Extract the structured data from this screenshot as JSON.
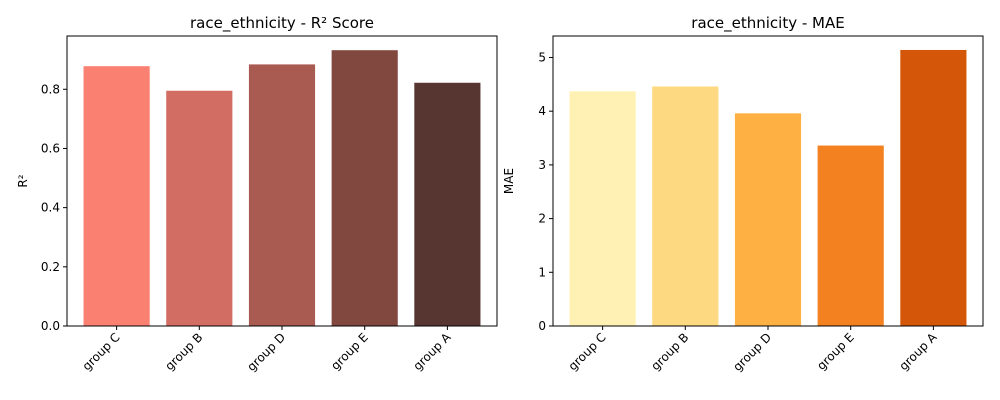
{
  "chart_data": [
    {
      "type": "bar",
      "title": "race_ethnicity - R² Score",
      "xlabel": "",
      "ylabel": "R²",
      "categories": [
        "group C",
        "group B",
        "group D",
        "group E",
        "group A"
      ],
      "values": [
        0.878,
        0.795,
        0.884,
        0.932,
        0.822
      ],
      "colors": [
        "#fa8072",
        "#d26d63",
        "#a95a51",
        "#814840",
        "#573530"
      ],
      "ylim": [
        0,
        0.98
      ],
      "yticks": [
        0.0,
        0.2,
        0.4,
        0.6,
        0.8
      ],
      "ytick_labels": [
        "0.0",
        "0.2",
        "0.4",
        "0.6",
        "0.8"
      ],
      "grid": false,
      "legend": "none"
    },
    {
      "type": "bar",
      "title": "race_ethnicity - MAE",
      "xlabel": "",
      "ylabel": "MAE",
      "categories": [
        "group C",
        "group B",
        "group D",
        "group E",
        "group A"
      ],
      "values": [
        4.37,
        4.46,
        3.96,
        3.36,
        5.14
      ],
      "colors": [
        "#fff1b3",
        "#fdd981",
        "#feb142",
        "#f4811f",
        "#d45709"
      ],
      "ylim": [
        0,
        5.4
      ],
      "yticks": [
        0,
        1,
        2,
        3,
        4,
        5
      ],
      "ytick_labels": [
        "0",
        "1",
        "2",
        "3",
        "4",
        "5"
      ],
      "grid": false,
      "legend": "none"
    }
  ]
}
